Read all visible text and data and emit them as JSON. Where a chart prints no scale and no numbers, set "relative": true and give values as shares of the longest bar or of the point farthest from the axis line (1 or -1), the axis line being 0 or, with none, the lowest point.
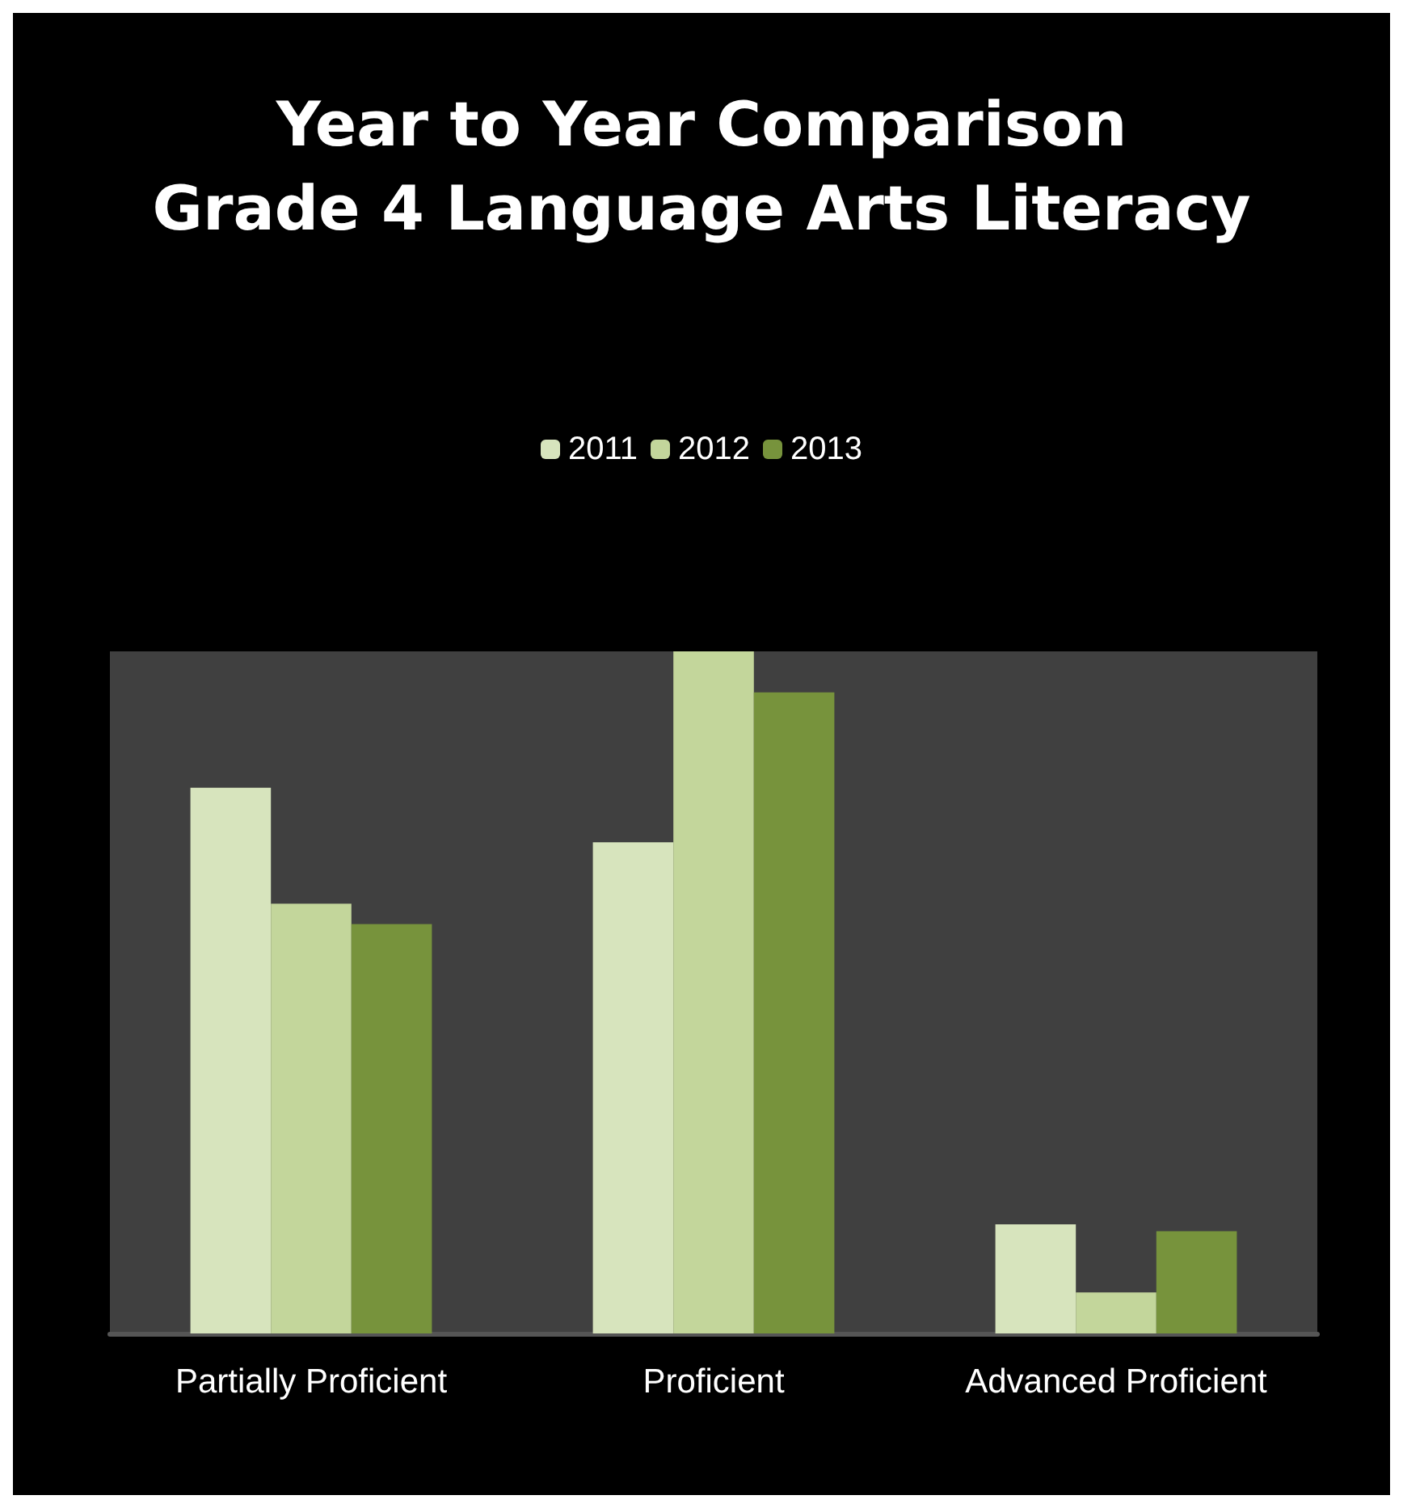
{
  "chart_data": {
    "type": "bar",
    "title": "Year to Year Comparison\nGrade 4 Language Arts Literacy",
    "categories": [
      "Partially Proficient",
      "Proficient",
      "Advanced Proficient"
    ],
    "relative": true,
    "legend": "top",
    "series": [
      {
        "name": "2011",
        "color": "#d7e4bd",
        "values": [
          0.8,
          0.72,
          0.16
        ]
      },
      {
        "name": "2012",
        "color": "#c3d69b",
        "values": [
          0.63,
          1,
          0.06
        ]
      },
      {
        "name": "2013",
        "color": "#77933c",
        "values": [
          0.6,
          0.94,
          0.15
        ]
      }
    ]
  }
}
